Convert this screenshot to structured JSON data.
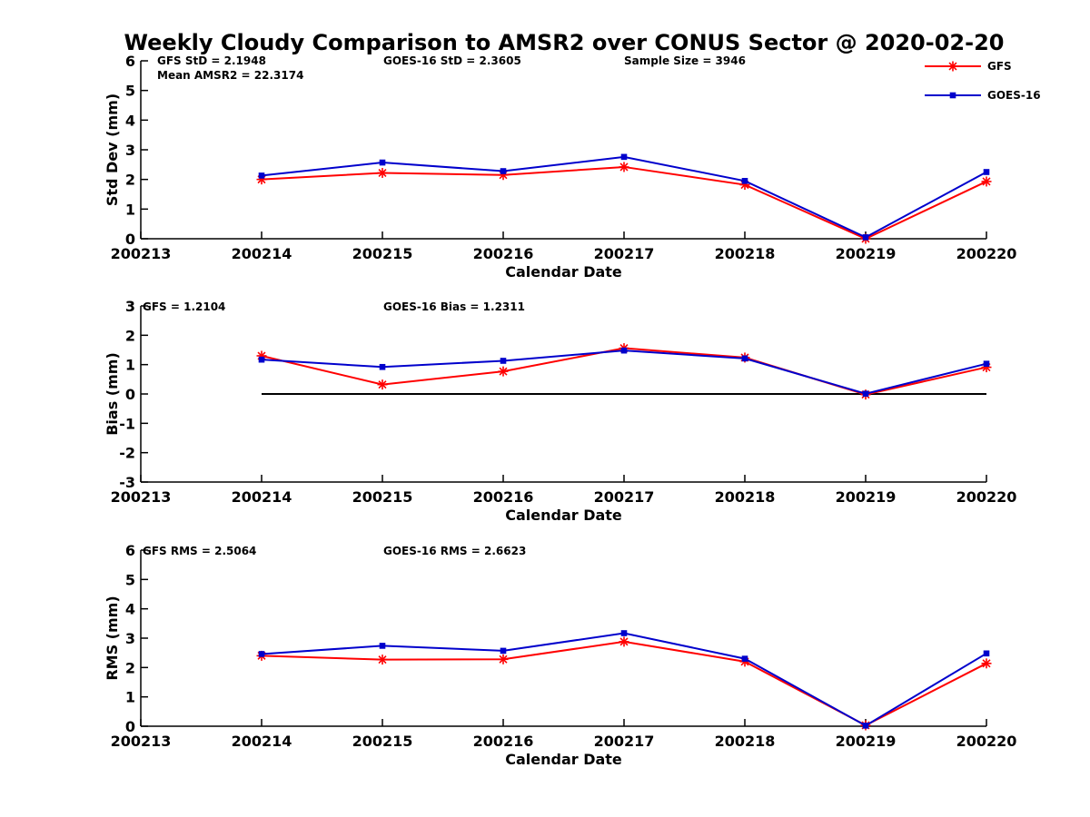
{
  "title": "Weekly Cloudy Comparison to AMSR2 over CONUS Sector @ 2020-02-20",
  "colors": {
    "GFS": "#ff0000",
    "GOES-16": "#0000cc",
    "zero_line": "#000000"
  },
  "legend": {
    "placement": "top-right of first panel",
    "entries": [
      {
        "label": "GFS",
        "marker": "asterisk"
      },
      {
        "label": "GOES-16",
        "marker": "square"
      }
    ]
  },
  "chart_data": [
    {
      "type": "line",
      "xlabel": "Calendar Date",
      "ylabel": "Std Dev (mm)",
      "categories": [
        "200213",
        "200214",
        "200215",
        "200216",
        "200217",
        "200218",
        "200219",
        "200220"
      ],
      "ylim": [
        0,
        6
      ],
      "yticks": [
        "0",
        "1",
        "2",
        "3",
        "4",
        "5",
        "6"
      ],
      "annotations": [
        "GFS StD = 2.1948",
        "GOES-16 StD = 2.3605",
        "Sample Size = 3946",
        "Mean AMSR2 = 22.3174"
      ],
      "series": [
        {
          "name": "GFS",
          "values": [
            null,
            2.0,
            2.22,
            2.15,
            2.42,
            1.82,
            0.0,
            1.93
          ]
        },
        {
          "name": "GOES-16",
          "values": [
            null,
            2.13,
            2.57,
            2.28,
            2.76,
            1.95,
            0.05,
            2.25
          ]
        }
      ],
      "zero_line": false
    },
    {
      "type": "line",
      "xlabel": "Calendar Date",
      "ylabel": "Bias (mm)",
      "categories": [
        "200213",
        "200214",
        "200215",
        "200216",
        "200217",
        "200218",
        "200219",
        "200220"
      ],
      "ylim": [
        -3,
        3
      ],
      "yticks": [
        "-3",
        "-2",
        "-1",
        "0",
        "1",
        "2",
        "3"
      ],
      "annotations": [
        "GFS = 1.2104",
        "GOES-16 Bias  = 1.2311"
      ],
      "series": [
        {
          "name": "GFS",
          "values": [
            null,
            1.3,
            0.32,
            0.77,
            1.56,
            1.24,
            -0.02,
            0.91
          ]
        },
        {
          "name": "GOES-16",
          "values": [
            null,
            1.17,
            0.92,
            1.13,
            1.48,
            1.21,
            0.01,
            1.03
          ]
        }
      ],
      "zero_line": true
    },
    {
      "type": "line",
      "xlabel": "Calendar Date",
      "ylabel": "RMS (mm)",
      "categories": [
        "200213",
        "200214",
        "200215",
        "200216",
        "200217",
        "200218",
        "200219",
        "200220"
      ],
      "ylim": [
        0,
        6
      ],
      "yticks": [
        "0",
        "1",
        "2",
        "3",
        "4",
        "5",
        "6"
      ],
      "annotations": [
        "GFS RMS = 2.5064",
        "GOES-16 RMS = 2.6623"
      ],
      "series": [
        {
          "name": "GFS",
          "values": [
            null,
            2.4,
            2.27,
            2.28,
            2.88,
            2.2,
            0.03,
            2.14
          ]
        },
        {
          "name": "GOES-16",
          "values": [
            null,
            2.46,
            2.74,
            2.57,
            3.17,
            2.3,
            0.02,
            2.48
          ]
        }
      ],
      "zero_line": false
    }
  ]
}
